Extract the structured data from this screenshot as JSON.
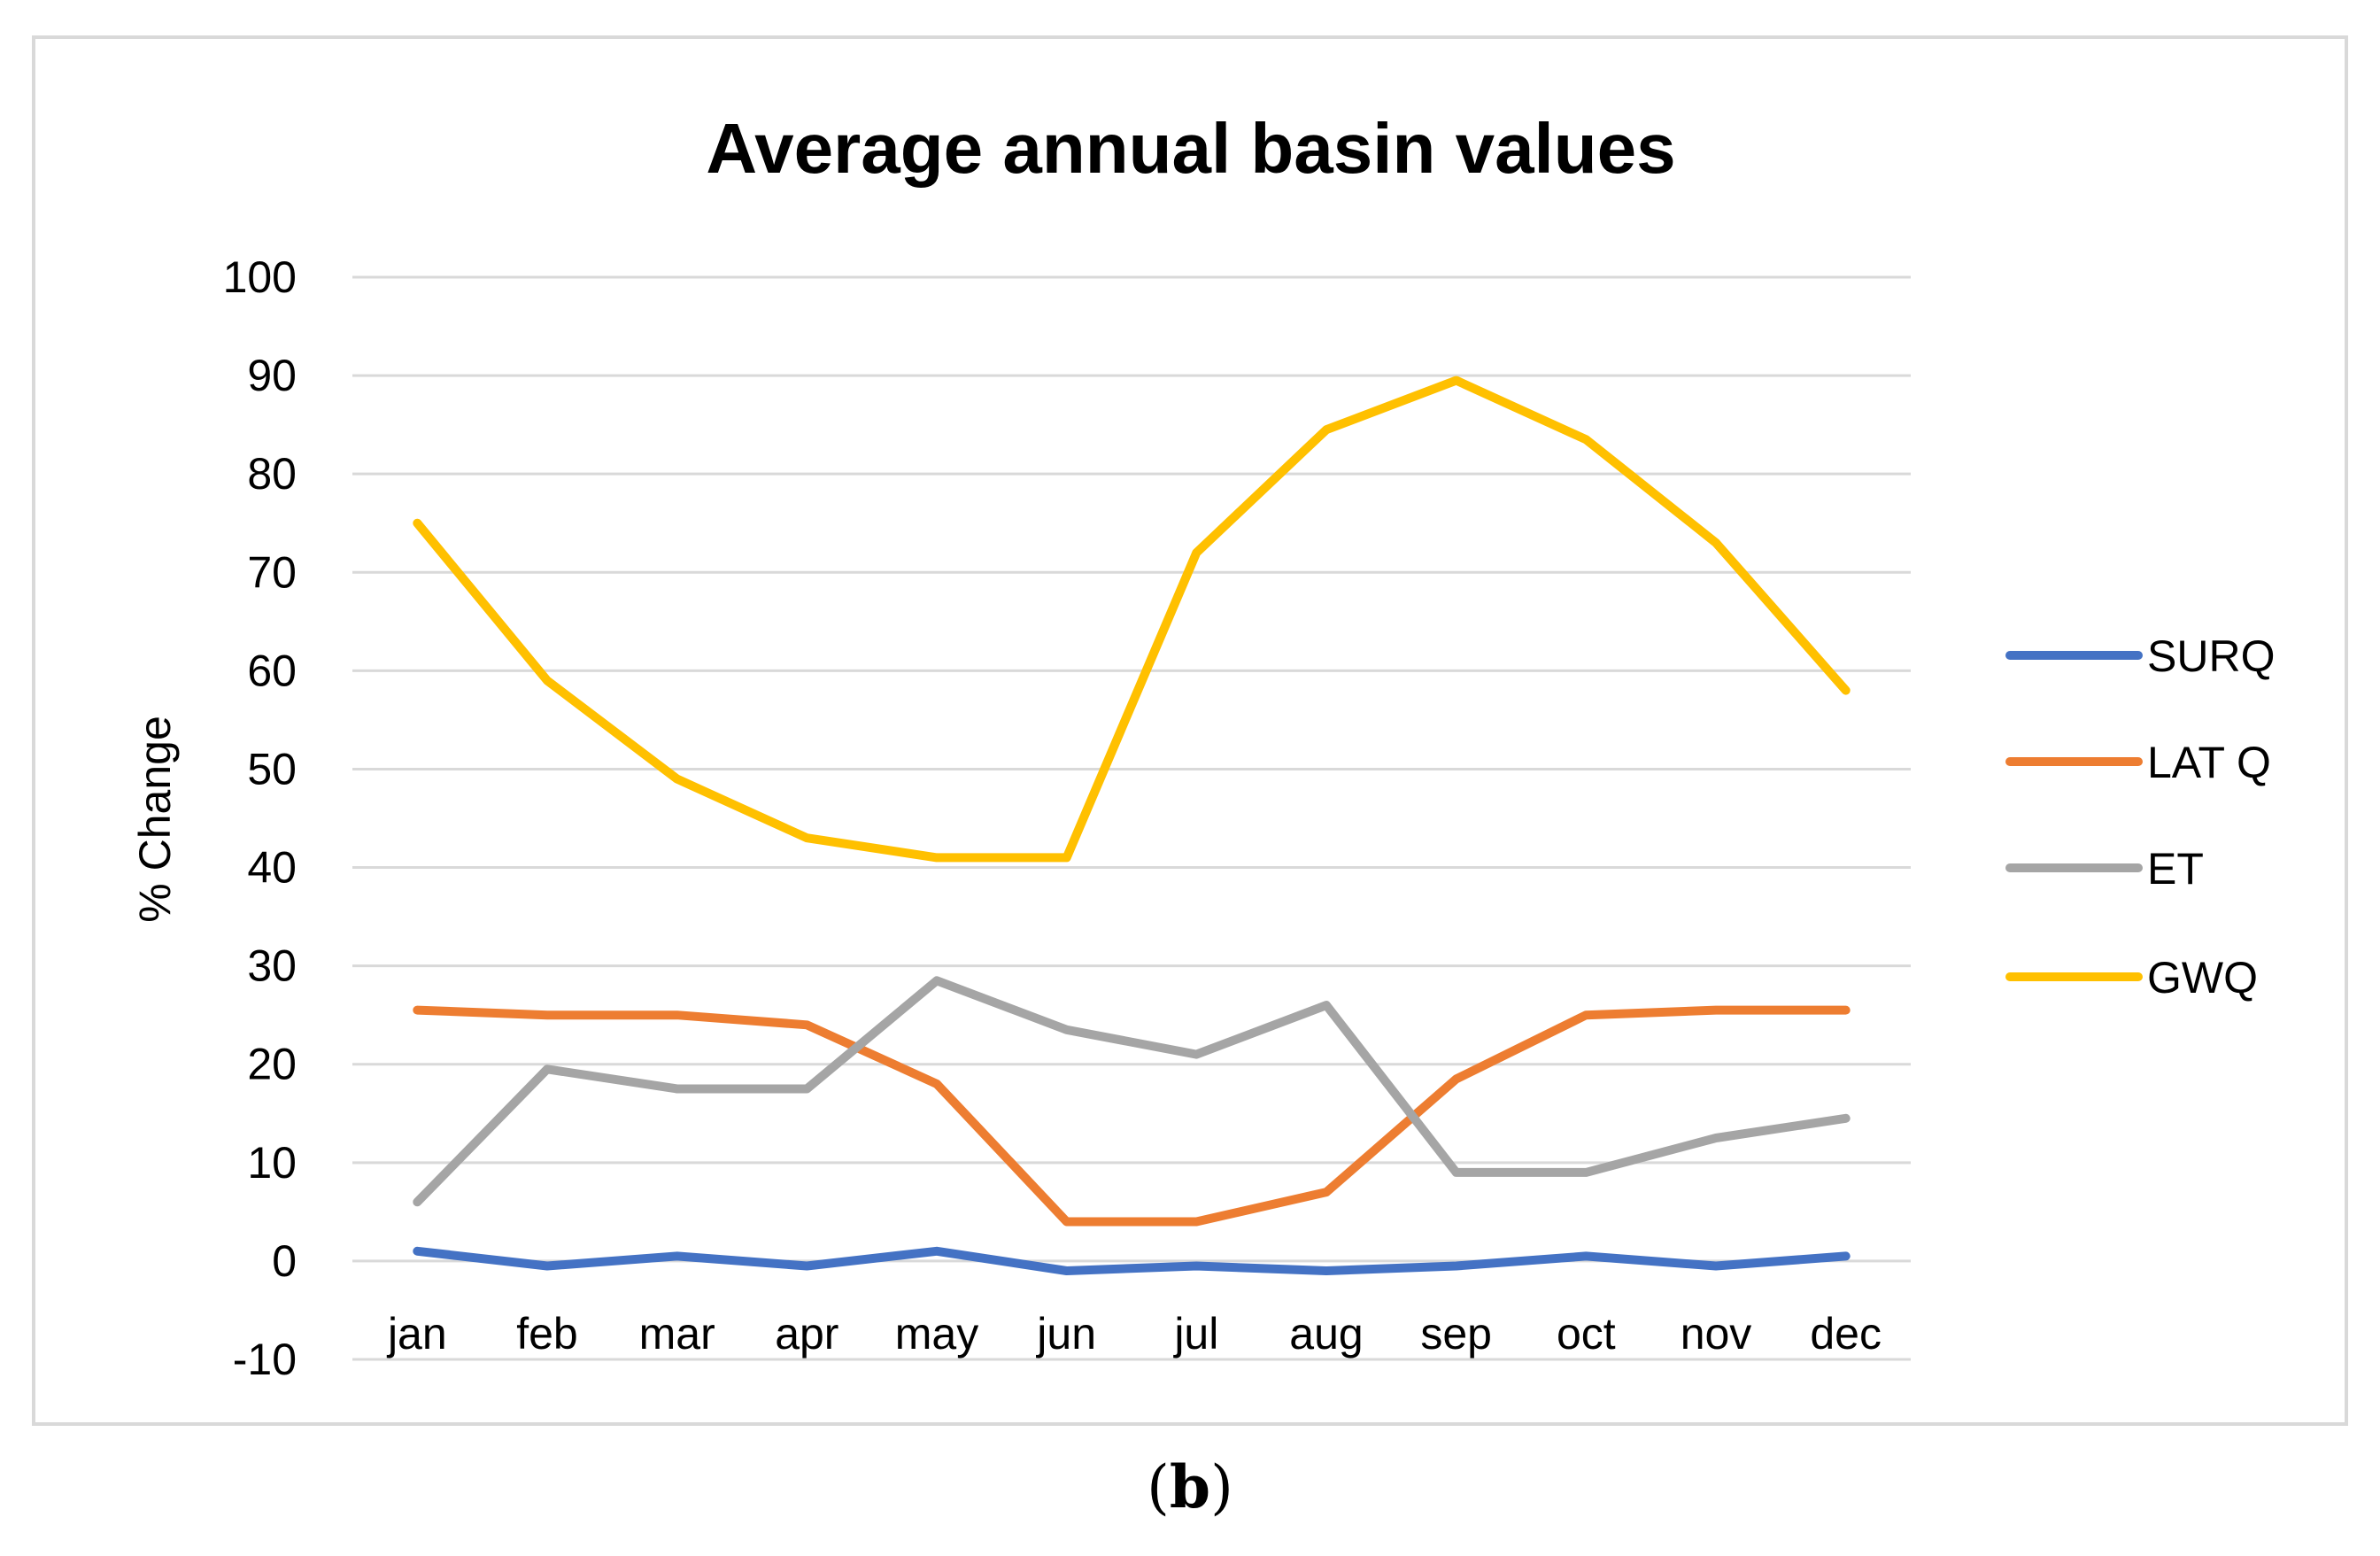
{
  "chart_data": {
    "type": "line",
    "title": "Average annual basin values",
    "xlabel": "",
    "ylabel": "% Change",
    "categories": [
      "jan",
      "feb",
      "mar",
      "apr",
      "may",
      "jun",
      "jul",
      "aug",
      "sep",
      "oct",
      "nov",
      "dec"
    ],
    "ylim": [
      -10,
      100
    ],
    "yticks": [
      "100",
      "90",
      "80",
      "70",
      "60",
      "50",
      "40",
      "30",
      "20",
      "10",
      "0",
      "-10"
    ],
    "grid": true,
    "legend_position": "right",
    "series": [
      {
        "name": "SURQ",
        "color": "#4472c4",
        "values": [
          1,
          -0.5,
          0.5,
          -0.5,
          1,
          -1,
          -0.5,
          -1,
          -0.5,
          0.5,
          -0.5,
          0.5
        ]
      },
      {
        "name": "LAT Q",
        "color": "#ed7d31",
        "values": [
          25.5,
          25,
          25,
          24,
          18,
          4,
          4,
          7,
          18.5,
          25,
          25.5,
          25.5
        ]
      },
      {
        "name": "ET",
        "color": "#a5a5a5",
        "values": [
          6,
          19.5,
          17.5,
          17.5,
          28.5,
          23.5,
          21,
          26,
          9,
          9,
          12.5,
          14.5
        ]
      },
      {
        "name": "GWQ",
        "color": "#ffc000",
        "values": [
          75,
          59,
          49,
          43,
          41,
          41,
          72,
          84.5,
          89.5,
          83.5,
          73,
          58
        ]
      }
    ]
  },
  "caption": {
    "open": "(",
    "label": "b",
    "close": ")"
  }
}
